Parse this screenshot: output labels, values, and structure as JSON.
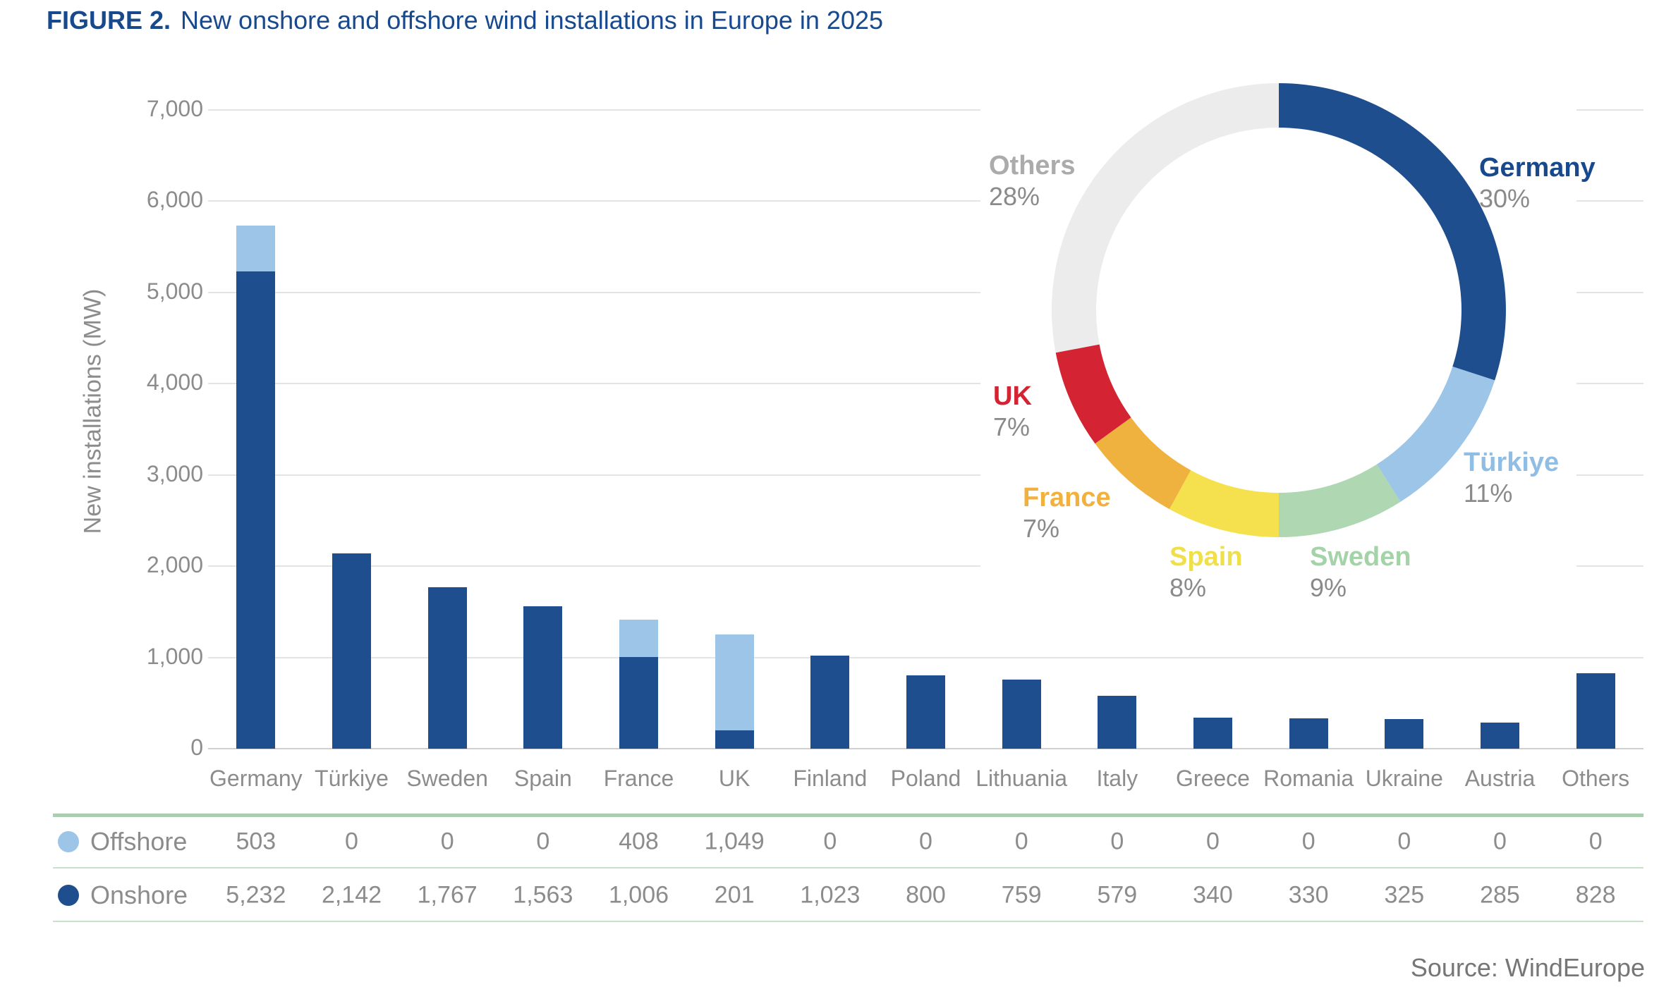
{
  "figure": {
    "label": "FIGURE 2.",
    "title": "New onshore and offshore wind installations in Europe in 2025"
  },
  "source_note": "Source: WindEurope",
  "colors": {
    "onshore": "#1f4e8e",
    "offshore": "#9cc5e8",
    "grid": "#e4e4e4",
    "axis_text": "#8c8c8c",
    "table_line_green": "#abceb1",
    "title_blue": "#17498c"
  },
  "chart_data": [
    {
      "type": "bar",
      "stacked": true,
      "ylabel": "New installations (MW)",
      "xlabel": "",
      "ylim": [
        0,
        7000
      ],
      "yticks": [
        0,
        1000,
        2000,
        3000,
        4000,
        5000,
        6000,
        7000
      ],
      "grid": true,
      "legend_position": "table-below",
      "categories": [
        "Germany",
        "Türkiye",
        "Sweden",
        "Spain",
        "France",
        "UK",
        "Finland",
        "Poland",
        "Lithuania",
        "Italy",
        "Greece",
        "Romania",
        "Ukraine",
        "Austria",
        "Others"
      ],
      "series": [
        {
          "name": "Offshore",
          "color": "#9cc5e8",
          "values": [
            503,
            0,
            0,
            0,
            408,
            1049,
            0,
            0,
            0,
            0,
            0,
            0,
            0,
            0,
            0
          ]
        },
        {
          "name": "Onshore",
          "color": "#1f4e8e",
          "values": [
            5232,
            2142,
            1767,
            1563,
            1006,
            201,
            1023,
            800,
            759,
            579,
            340,
            330,
            325,
            285,
            828
          ]
        }
      ]
    },
    {
      "type": "pie",
      "subtype": "donut",
      "unit": "%",
      "start_angle_deg": 0,
      "direction": "clockwise",
      "slices": [
        {
          "label": "Germany",
          "value": 30,
          "color": "#1f4e8e",
          "label_color": "#17498c"
        },
        {
          "label": "Türkiye",
          "value": 11,
          "color": "#9cc5e8",
          "label_color": "#8fbde4"
        },
        {
          "label": "Sweden",
          "value": 9,
          "color": "#aed7b2",
          "label_color": "#a5d3a9"
        },
        {
          "label": "Spain",
          "value": 8,
          "color": "#f5e14d",
          "label_color": "#efe04b"
        },
        {
          "label": "France",
          "value": 7,
          "color": "#f0b23e",
          "label_color": "#f2b13e"
        },
        {
          "label": "UK",
          "value": 7,
          "color": "#d42332",
          "label_color": "#d42332"
        },
        {
          "label": "Others",
          "value": 28,
          "color": "#ececec",
          "label_color": "#ababab"
        }
      ]
    }
  ]
}
